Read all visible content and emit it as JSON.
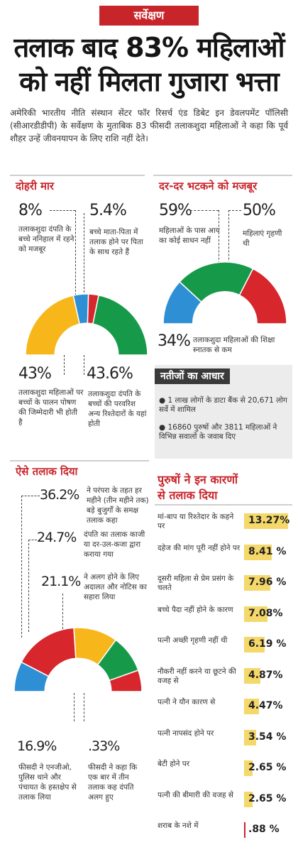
{
  "tag": "सर्वेक्षण",
  "headline": [
    "तलाक बाद 83% महिलाओं",
    "को नहीं मिलता गुजारा भत्ता"
  ],
  "intro": "अमेरिकी भारतीय नीति संस्थान सेंटर फॉर रिसर्च एंड डिबेट इन डेवलपमेंट पॉलिसी (सीआरडीडीपी) के सर्वेक्षण के मुताबिक 83 फीसदी तलाकशुदा महिलाओं ने कहा कि पूर्व शौहर उन्हें जीवनयापन के लिए राशि नहीं देते।",
  "colors": {
    "red": "#d7262c",
    "yellow": "#f7b71b",
    "green": "#169a4a",
    "blue": "#2f8fd5",
    "bar": "#f5d86a"
  },
  "sections": {
    "double": {
      "title": "दोहरी मार",
      "items": [
        {
          "pct": "8%",
          "note": "तलाकशुदा दंपति के बच्चे ननिहाल में रहने को मजबूर"
        },
        {
          "pct": "5.4%",
          "note": "बच्चे माता-पिता में तलाक होने पर पिता के साथ रहते हैं"
        },
        {
          "pct": "43%",
          "note": "तलाकशुदा महिलाओं पर बच्चों के पालन पोषण की जिम्मेदारी भी होती है"
        },
        {
          "pct": "43.6%",
          "note": "तलाकशुदा दंपति के बच्चों की परवरिश अन्य रिश्तेदारों के यहां होती"
        }
      ]
    },
    "wander": {
      "title": "दर-दर भटकने को मजबूर",
      "items": [
        {
          "pct": "59%",
          "note": "महिलाओं के पास आय का कोई साधन नहीं"
        },
        {
          "pct": "50%",
          "note": "महिलाएं गृहणी थी"
        },
        {
          "pct": "34%",
          "note": "तलाकशुदा महिलाओं की शिक्षा स्नातक से कम"
        }
      ]
    },
    "basis": {
      "title": "नतीजों का आधार",
      "items": [
        "● 1 लाख लोगों के डाटा बैंक से 20,671 लोग सर्वे में शामिल",
        "● 16860 पुरुषों और 3811 महिलाओं ने विभिन्न सवालों के जवाब दिए"
      ]
    },
    "divorce": {
      "title": "ऐसे तलाक दिया",
      "items": [
        {
          "pct": "36.2%",
          "note": "ने परंपरा के तहत हर महीने (तीन महीने तक) बड़े बुजुर्गों के समक्ष तलाक कहा"
        },
        {
          "pct": "24.7%",
          "note": "दंपति का तलाक काजी या दर-उल-कजा द्वारा कराया गया"
        },
        {
          "pct": "21.1%",
          "note": "ने अलग होने के लिए अदालत और नोटिस का सहारा लिया"
        },
        {
          "pct": "16.9%",
          "note": "फीसदी ने एनजीओ, पुलिस थाने और पंचायत के हस्तक्षेप से तलाक लिया"
        },
        {
          "pct": ".33%",
          "note": "फीसदी ने कहा कि एक बार में तीन तलाक कह दंपति अलग हुए"
        }
      ]
    },
    "reasons": {
      "title": [
        "पुरुषों ने इन कारणों",
        "से तलाक दिया"
      ]
    }
  },
  "chart_data": [
    {
      "type": "pie",
      "title": "दोहरी मार",
      "categories": [
        "43%",
        "8%",
        "5.4%",
        "43.6%"
      ],
      "values": [
        43,
        8,
        5.4,
        43.6
      ]
    },
    {
      "type": "pie",
      "title": "दर-दर भटकने को मजबूर",
      "categories": [
        "34%",
        "59%",
        "50%"
      ],
      "values": [
        34,
        59,
        50
      ]
    },
    {
      "type": "pie",
      "title": "ऐसे तलाक दिया",
      "categories": [
        "16.9%",
        "36.2%",
        "24.7%",
        "21.1%",
        ".33%"
      ],
      "values": [
        16.9,
        36.2,
        24.7,
        21.1,
        0.33
      ]
    },
    {
      "type": "bar",
      "title": "पुरुषों ने इन कारणों से तलाक दिया",
      "categories": [
        "मां-बाप या रिश्तेदार के कहने पर",
        "दहेज की मांग पूरी नहीं होने पर",
        "दूसरी महिला से प्रेम प्रसंग के चलते",
        "बच्चे पैदा नहीं होने के कारण",
        "पत्नी अच्छी गृहणी नहीं थी",
        "नौकरी नहीं करने या छूटने की वजह से",
        "पत्नी ने यौन कारण से",
        "पत्नी नापसंद होने पर",
        "बेटी होने पर",
        "पत्नी की बीमारी की वजह से",
        "शराब के नशे में"
      ],
      "values": [
        13.27,
        8.41,
        7.96,
        7.08,
        6.19,
        4.87,
        4.47,
        3.54,
        2.65,
        2.65,
        0.88
      ],
      "labels": [
        "13.27%",
        "8.41 %",
        "7.96 %",
        "7.08%",
        "6.19 %",
        "4.87%",
        "4.47%",
        "3.54 %",
        "2.65 %",
        "2.65 %",
        ".88 %"
      ]
    }
  ]
}
